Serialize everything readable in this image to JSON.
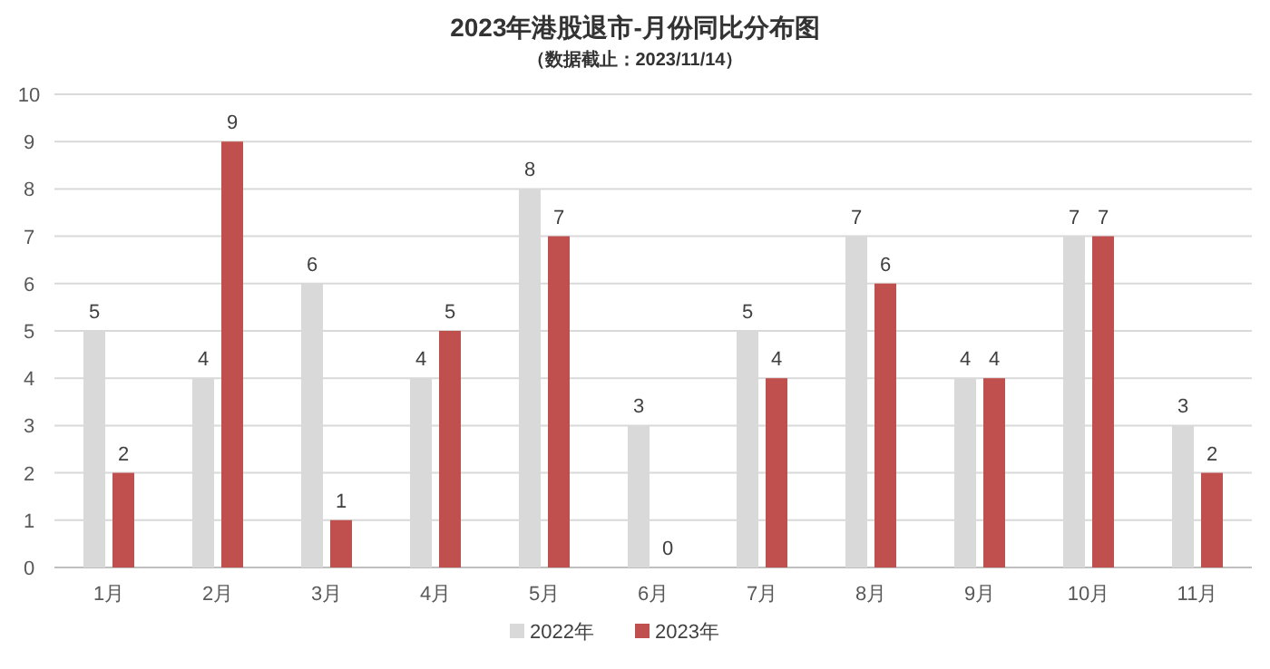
{
  "chart_data": {
    "type": "bar",
    "title": "2023年港股退市-月份同比分布图",
    "subtitle": "（数据截止：2023/11/14）",
    "categories": [
      "1月",
      "2月",
      "3月",
      "4月",
      "5月",
      "6月",
      "7月",
      "8月",
      "9月",
      "10月",
      "11月"
    ],
    "series": [
      {
        "name": "2022年",
        "color": "#d9d9d9",
        "values": [
          5,
          4,
          6,
          4,
          8,
          3,
          5,
          7,
          4,
          7,
          3
        ]
      },
      {
        "name": "2023年",
        "color": "#c0504d",
        "values": [
          2,
          9,
          1,
          5,
          7,
          0,
          4,
          6,
          4,
          7,
          2
        ]
      }
    ],
    "ylim": [
      0,
      10
    ],
    "yticks": [
      0,
      1,
      2,
      3,
      4,
      5,
      6,
      7,
      8,
      9,
      10
    ],
    "grid": "y",
    "legend": "bottom",
    "data_labels": true
  }
}
